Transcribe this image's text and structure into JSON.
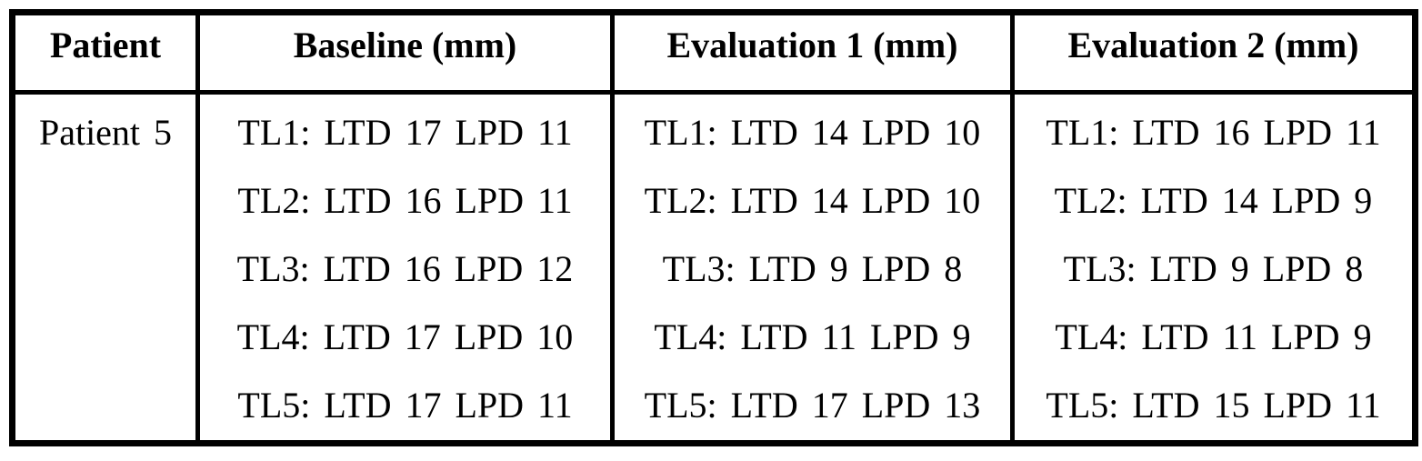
{
  "table": {
    "headers": [
      "Patient",
      "Baseline (mm)",
      "Evaluation 1 (mm)",
      "Evaluation 2 (mm)"
    ],
    "row": {
      "patient": "Patient 5",
      "baseline": [
        "TL1: LTD 17 LPD 11",
        "TL2: LTD 16 LPD 11",
        "TL3: LTD 16 LPD 12",
        "TL4: LTD 17 LPD 10",
        "TL5: LTD 17 LPD 11"
      ],
      "evaluation1": [
        "TL1: LTD 14 LPD 10",
        "TL2: LTD 14 LPD 10",
        "TL3: LTD 9 LPD 8",
        "TL4: LTD 11 LPD 9",
        "TL5: LTD 17 LPD 13"
      ],
      "evaluation2": [
        "TL1: LTD 16 LPD 11",
        "TL2: LTD 14 LPD 9",
        "TL3: LTD 9 LPD 8",
        "TL4: LTD 11 LPD 9",
        "TL5: LTD 15 LPD 11"
      ]
    },
    "colors": {
      "text": "#000000",
      "border": "#000000",
      "background": "#ffffff"
    }
  }
}
